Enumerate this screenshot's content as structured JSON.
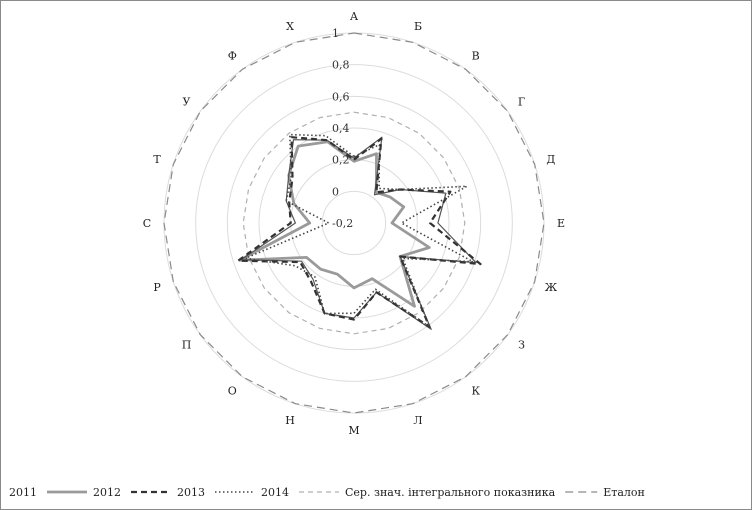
{
  "chart_data": {
    "type": "radar",
    "title": "",
    "categories": [
      "А",
      "Б",
      "В",
      "Г",
      "Д",
      "Е",
      "Ж",
      "З",
      "К",
      "Л",
      "М",
      "Н",
      "О",
      "П",
      "Р",
      "С",
      "Т",
      "У",
      "Ф",
      "Х"
    ],
    "rlim": [
      -0.2,
      1
    ],
    "ticks": [
      -0.2,
      0,
      0.2,
      0.4,
      0.6,
      0.8,
      1
    ],
    "tick_labels": [
      "-0,2",
      "0",
      "0,2",
      "0,4",
      "0,6",
      "0,8",
      "1"
    ],
    "grid": true,
    "legend_position": "bottom",
    "series": [
      {
        "name": "2011",
        "color": "#555555",
        "style": "solid-thin",
        "values": [
          0.21,
          0.37,
          0.02,
          0.16,
          0.41,
          0.33,
          0.61,
          0.16,
          0.63,
          0.26,
          0.4,
          0.4,
          0.24,
          0.21,
          0.55,
          0.17,
          0.25,
          0.31,
          0.45,
          0.35
        ]
      },
      {
        "name": "2012",
        "color": "#9a9a9a",
        "style": "solid-thick",
        "values": [
          0.19,
          0.26,
          0.04,
          0.08,
          0.13,
          0.04,
          0.3,
          0.16,
          0.45,
          0.17,
          0.21,
          0.14,
          0.16,
          0.17,
          0.56,
          0.08,
          0.2,
          0.31,
          0.4,
          0.34
        ]
      },
      {
        "name": "2013",
        "color": "#333333",
        "style": "dashed",
        "values": [
          0.2,
          0.36,
          0.04,
          0.16,
          0.44,
          0.28,
          0.64,
          0.16,
          0.61,
          0.26,
          0.41,
          0.4,
          0.26,
          0.22,
          0.57,
          0.2,
          0.23,
          0.28,
          0.47,
          0.35
        ]
      },
      {
        "name": "2014",
        "color": "#444444",
        "style": "dotted",
        "values": [
          0.22,
          0.32,
          0.07,
          0.16,
          0.55,
          0.1,
          0.59,
          0.18,
          0.61,
          0.24,
          0.37,
          0.4,
          0.22,
          0.26,
          0.52,
          -0.04,
          0.25,
          0.29,
          0.49,
          0.38
        ]
      },
      {
        "name": "Сер. знач. інтегрального показника",
        "color": "#b0b0b0",
        "style": "thin-dashed",
        "values": [
          0.5,
          0.5,
          0.5,
          0.5,
          0.5,
          0.5,
          0.5,
          0.5,
          0.5,
          0.5,
          0.5,
          0.5,
          0.5,
          0.5,
          0.5,
          0.5,
          0.5,
          0.5,
          0.5,
          0.5
        ]
      },
      {
        "name": "Еталон",
        "color": "#8a8a8a",
        "style": "long-dashed",
        "values": [
          1,
          1,
          1,
          1,
          1,
          1,
          1,
          1,
          1,
          1,
          1,
          1,
          1,
          1,
          1,
          1,
          1,
          1,
          1,
          1
        ]
      }
    ]
  }
}
